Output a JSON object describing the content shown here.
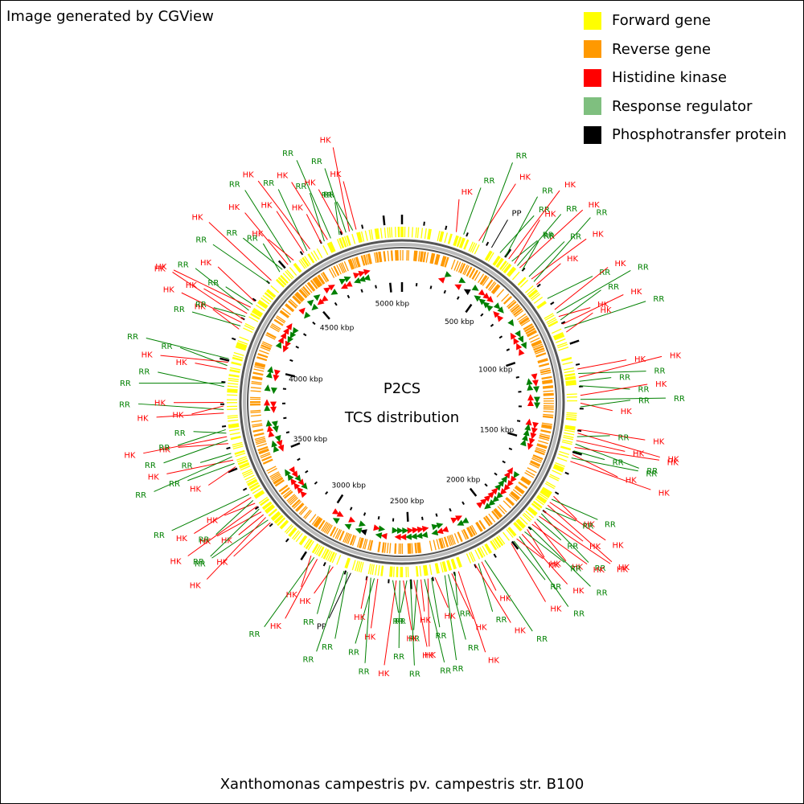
{
  "credit": "Image generated by CGView",
  "legend": [
    {
      "label": "Forward gene",
      "color": "#ffff00"
    },
    {
      "label": "Reverse gene",
      "color": "#ff9900"
    },
    {
      "label": "Histidine kinase",
      "color": "#ff0000"
    },
    {
      "label": "Response regulator",
      "color": "#7fbf7f"
    },
    {
      "label": "Phosphotransfer protein",
      "color": "#000000"
    }
  ],
  "center_title": "P2CS",
  "center_subtitle": "TCS distribution",
  "caption": "Xanthomonas campestris pv. campestris str. B100",
  "genome_kbp": 5080,
  "ticks": [
    {
      "kbp": 500,
      "label": "500 kbp"
    },
    {
      "kbp": 1000,
      "label": "1000 kbp"
    },
    {
      "kbp": 1500,
      "label": "1500 kbp"
    },
    {
      "kbp": 2000,
      "label": "2000 kbp"
    },
    {
      "kbp": 2500,
      "label": "2500 kbp"
    },
    {
      "kbp": 3000,
      "label": "3000 kbp"
    },
    {
      "kbp": 3500,
      "label": "3500 kbp"
    },
    {
      "kbp": 4000,
      "label": "4000 kbp"
    },
    {
      "kbp": 4500,
      "label": "4500 kbp"
    },
    {
      "kbp": 5000,
      "label": "5000 kbp"
    }
  ],
  "features": [
    {
      "type": "HK",
      "kbp": 250
    },
    {
      "type": "RR",
      "kbp": 285
    },
    {
      "type": "HK",
      "kbp": 360
    },
    {
      "type": "RR",
      "kbp": 378
    },
    {
      "type": "PP",
      "kbp": 425
    },
    {
      "type": "RR",
      "kbp": 470
    },
    {
      "type": "RR",
      "kbp": 500
    },
    {
      "type": "HK",
      "kbp": 518
    },
    {
      "type": "RR",
      "kbp": 536
    },
    {
      "type": "HK",
      "kbp": 552
    },
    {
      "type": "RR",
      "kbp": 568
    },
    {
      "type": "HK",
      "kbp": 582
    },
    {
      "type": "RR",
      "kbp": 598
    },
    {
      "type": "RR",
      "kbp": 640
    },
    {
      "type": "HK",
      "kbp": 656
    },
    {
      "type": "RR",
      "kbp": 672
    },
    {
      "type": "HK",
      "kbp": 690
    },
    {
      "type": "RR",
      "kbp": 770
    },
    {
      "type": "HK",
      "kbp": 830
    },
    {
      "type": "RR",
      "kbp": 848
    },
    {
      "type": "HK",
      "kbp": 866
    },
    {
      "type": "RR",
      "kbp": 884
    },
    {
      "type": "HK",
      "kbp": 905
    },
    {
      "type": "RR",
      "kbp": 925
    },
    {
      "type": "HK",
      "kbp": 945
    },
    {
      "type": "HK",
      "kbp": 1120
    },
    {
      "type": "RR",
      "kbp": 1140
    },
    {
      "type": "HK",
      "kbp": 1158
    },
    {
      "type": "RR",
      "kbp": 1176
    },
    {
      "type": "RR",
      "kbp": 1196
    },
    {
      "type": "HK",
      "kbp": 1240
    },
    {
      "type": "RR",
      "kbp": 1258
    },
    {
      "type": "HK",
      "kbp": 1275
    },
    {
      "type": "RR",
      "kbp": 1292
    },
    {
      "type": "HK",
      "kbp": 1395
    },
    {
      "type": "HK",
      "kbp": 1412
    },
    {
      "type": "RR",
      "kbp": 1428
    },
    {
      "type": "HK",
      "kbp": 1446
    },
    {
      "type": "RR",
      "kbp": 1462
    },
    {
      "type": "HK",
      "kbp": 1478
    },
    {
      "type": "RR",
      "kbp": 1494
    },
    {
      "type": "HK",
      "kbp": 1512
    },
    {
      "type": "RR",
      "kbp": 1528
    },
    {
      "type": "HK",
      "kbp": 1544
    },
    {
      "type": "HK",
      "kbp": 1720
    },
    {
      "type": "RR",
      "kbp": 1736
    },
    {
      "type": "HK",
      "kbp": 1752
    },
    {
      "type": "HK",
      "kbp": 1768
    },
    {
      "type": "RR",
      "kbp": 1784
    },
    {
      "type": "HK",
      "kbp": 1800
    },
    {
      "type": "RR",
      "kbp": 1816
    },
    {
      "type": "HK",
      "kbp": 1832
    },
    {
      "type": "RR",
      "kbp": 1848
    },
    {
      "type": "HK",
      "kbp": 1864
    },
    {
      "type": "HK",
      "kbp": 1880
    },
    {
      "type": "RR",
      "kbp": 1896
    },
    {
      "type": "HK",
      "kbp": 1912
    },
    {
      "type": "RR",
      "kbp": 1928
    },
    {
      "type": "HK",
      "kbp": 1944
    },
    {
      "type": "RR",
      "kbp": 1960
    },
    {
      "type": "HK",
      "kbp": 1976
    },
    {
      "type": "RR",
      "kbp": 1992
    },
    {
      "type": "HK",
      "kbp": 2008
    },
    {
      "type": "RR",
      "kbp": 2150
    },
    {
      "type": "HK",
      "kbp": 2166
    },
    {
      "type": "RR",
      "kbp": 2182
    },
    {
      "type": "HK",
      "kbp": 2198
    },
    {
      "type": "HK",
      "kbp": 2280
    },
    {
      "type": "RR",
      "kbp": 2296
    },
    {
      "type": "HK",
      "kbp": 2312
    },
    {
      "type": "RR",
      "kbp": 2328
    },
    {
      "type": "RR",
      "kbp": 2344
    },
    {
      "type": "HK",
      "kbp": 2390
    },
    {
      "type": "RR",
      "kbp": 2406
    },
    {
      "type": "HK",
      "kbp": 2422
    },
    {
      "type": "RR",
      "kbp": 2438
    },
    {
      "type": "HK",
      "kbp": 2454
    },
    {
      "type": "RR",
      "kbp": 2470
    },
    {
      "type": "HK",
      "kbp": 2486
    },
    {
      "type": "RR",
      "kbp": 2502
    },
    {
      "type": "RR",
      "kbp": 2518
    },
    {
      "type": "HK",
      "kbp": 2534
    },
    {
      "type": "RR",
      "kbp": 2550
    },
    {
      "type": "HK",
      "kbp": 2566
    },
    {
      "type": "RR",
      "kbp": 2582
    },
    {
      "type": "HK",
      "kbp": 2650
    },
    {
      "type": "RR",
      "kbp": 2666
    },
    {
      "type": "RR",
      "kbp": 2682
    },
    {
      "type": "HK",
      "kbp": 2698
    },
    {
      "type": "PP",
      "kbp": 2775
    },
    {
      "type": "RR",
      "kbp": 2791
    },
    {
      "type": "RR",
      "kbp": 2807
    },
    {
      "type": "HK",
      "kbp": 2860
    },
    {
      "type": "RR",
      "kbp": 2876
    },
    {
      "type": "HK",
      "kbp": 2940
    },
    {
      "type": "RR",
      "kbp": 2956
    },
    {
      "type": "HK",
      "kbp": 2972
    },
    {
      "type": "HK",
      "kbp": 3210
    },
    {
      "type": "RR",
      "kbp": 3226
    },
    {
      "type": "HK",
      "kbp": 3242
    },
    {
      "type": "HK",
      "kbp": 3258
    },
    {
      "type": "HK",
      "kbp": 3274
    },
    {
      "type": "RR",
      "kbp": 3290
    },
    {
      "type": "HK",
      "kbp": 3306
    },
    {
      "type": "HK",
      "kbp": 3322
    },
    {
      "type": "RR",
      "kbp": 3338
    },
    {
      "type": "HK",
      "kbp": 3354
    },
    {
      "type": "RR",
      "kbp": 3370
    },
    {
      "type": "HK",
      "kbp": 3510
    },
    {
      "type": "RR",
      "kbp": 3526
    },
    {
      "type": "HK",
      "kbp": 3542
    },
    {
      "type": "RR",
      "kbp": 3558
    },
    {
      "type": "RR",
      "kbp": 3574
    },
    {
      "type": "HK",
      "kbp": 3620
    },
    {
      "type": "RR",
      "kbp": 3636
    },
    {
      "type": "HK",
      "kbp": 3652
    },
    {
      "type": "RR",
      "kbp": 3668
    },
    {
      "type": "RR",
      "kbp": 3684
    },
    {
      "type": "HK",
      "kbp": 3760
    },
    {
      "type": "RR",
      "kbp": 3776
    },
    {
      "type": "HK",
      "kbp": 3792
    },
    {
      "type": "HK",
      "kbp": 3808
    },
    {
      "type": "RR",
      "kbp": 3880
    },
    {
      "type": "RR",
      "kbp": 3896
    },
    {
      "type": "HK",
      "kbp": 3960
    },
    {
      "type": "RR",
      "kbp": 3976
    },
    {
      "type": "HK",
      "kbp": 3992
    },
    {
      "type": "RR",
      "kbp": 4008
    },
    {
      "type": "HK",
      "kbp": 4150
    },
    {
      "type": "RR",
      "kbp": 4166
    },
    {
      "type": "HK",
      "kbp": 4182
    },
    {
      "type": "HK",
      "kbp": 4198
    },
    {
      "type": "RR",
      "kbp": 4214
    },
    {
      "type": "HK",
      "kbp": 4230
    },
    {
      "type": "RR",
      "kbp": 4246
    },
    {
      "type": "HK",
      "kbp": 4262
    },
    {
      "type": "RR",
      "kbp": 4278
    },
    {
      "type": "HK",
      "kbp": 4294
    },
    {
      "type": "RR",
      "kbp": 4400
    },
    {
      "type": "HK",
      "kbp": 4416
    },
    {
      "type": "RR",
      "kbp": 4470
    },
    {
      "type": "RR",
      "kbp": 4486
    },
    {
      "type": "HK",
      "kbp": 4520
    },
    {
      "type": "RR",
      "kbp": 4536
    },
    {
      "type": "HK",
      "kbp": 4552
    },
    {
      "type": "HK",
      "kbp": 4610
    },
    {
      "type": "RR",
      "kbp": 4626
    },
    {
      "type": "HK",
      "kbp": 4642
    },
    {
      "type": "HK",
      "kbp": 4700
    },
    {
      "type": "RR",
      "kbp": 4716
    },
    {
      "type": "HK",
      "kbp": 4732
    },
    {
      "type": "RR",
      "kbp": 4748
    },
    {
      "type": "RR",
      "kbp": 4790
    },
    {
      "type": "HK",
      "kbp": 4806
    },
    {
      "type": "RR",
      "kbp": 4822
    },
    {
      "type": "HK",
      "kbp": 4838
    },
    {
      "type": "RR",
      "kbp": 4854
    },
    {
      "type": "HK",
      "kbp": 4870
    }
  ]
}
